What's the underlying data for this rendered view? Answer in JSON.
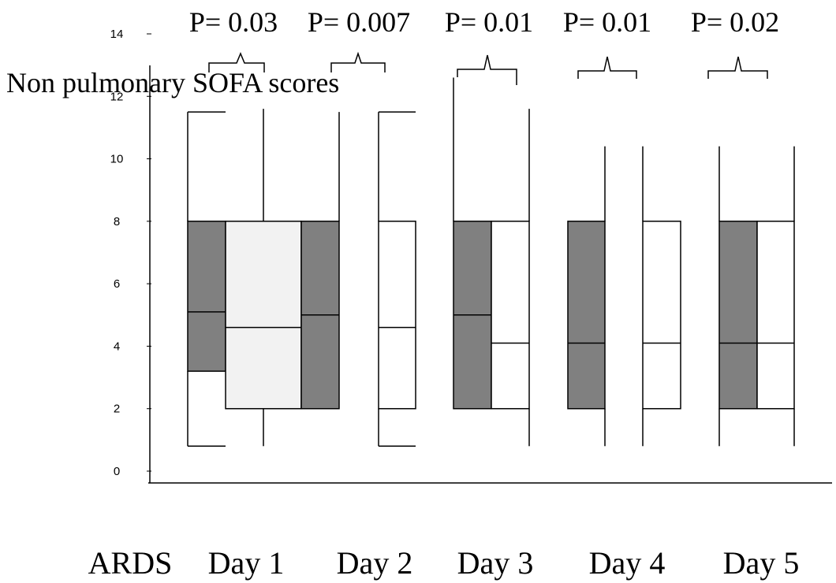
{
  "chart_data": {
    "type": "box",
    "title": "Non pulmonary SOFA scores",
    "categories": [
      "ARDS",
      "Day 1",
      "Day 2",
      "Day 3",
      "Day 4",
      "Day 5"
    ],
    "annotations": [
      "P= 0.03",
      "P= 0.007",
      "P= 0.01",
      "P= 0.01",
      "P= 0.02"
    ],
    "ylim": [
      0,
      14
    ],
    "yticks": [
      0,
      2,
      4,
      6,
      8,
      10,
      12,
      14
    ],
    "boxes": [
      {
        "color": "#808080",
        "low": 0.8,
        "q1": 3.2,
        "median": 5.1,
        "q3": 8,
        "high": 11.5
      },
      {
        "color": "#f2f2f2",
        "low": 0.8,
        "q1": 2,
        "median": 4.6,
        "q3": 8,
        "high": 11.6
      },
      {
        "color": "#808080",
        "low": 2,
        "q1": 2,
        "median": 5,
        "q3": 8,
        "high": 11.5
      },
      {
        "color": "#ffffff",
        "low": 0.8,
        "q1": 2,
        "median": 4.6,
        "q3": 8,
        "high": 11.5
      },
      {
        "color": "#808080",
        "low": 2,
        "q1": 2,
        "median": 5,
        "q3": 8,
        "high": 12.6
      },
      {
        "color": "#ffffff",
        "low": 0.8,
        "q1": 2,
        "median": 4.1,
        "q3": 8,
        "high": 11.6
      },
      {
        "color": "#808080",
        "low": 0.8,
        "q1": 2,
        "median": 4.1,
        "q3": 8,
        "high": 10.4
      },
      {
        "color": "#ffffff",
        "low": 0.8,
        "q1": 2,
        "median": 4.1,
        "q3": 8,
        "high": 10.4
      },
      {
        "color": "#808080",
        "low": 0.8,
        "q1": 2,
        "median": 4.1,
        "q3": 8,
        "high": 10.4
      },
      {
        "color": "#ffffff",
        "low": 0.8,
        "q1": 2,
        "median": 4.1,
        "q3": 8,
        "high": 10.4
      }
    ]
  }
}
